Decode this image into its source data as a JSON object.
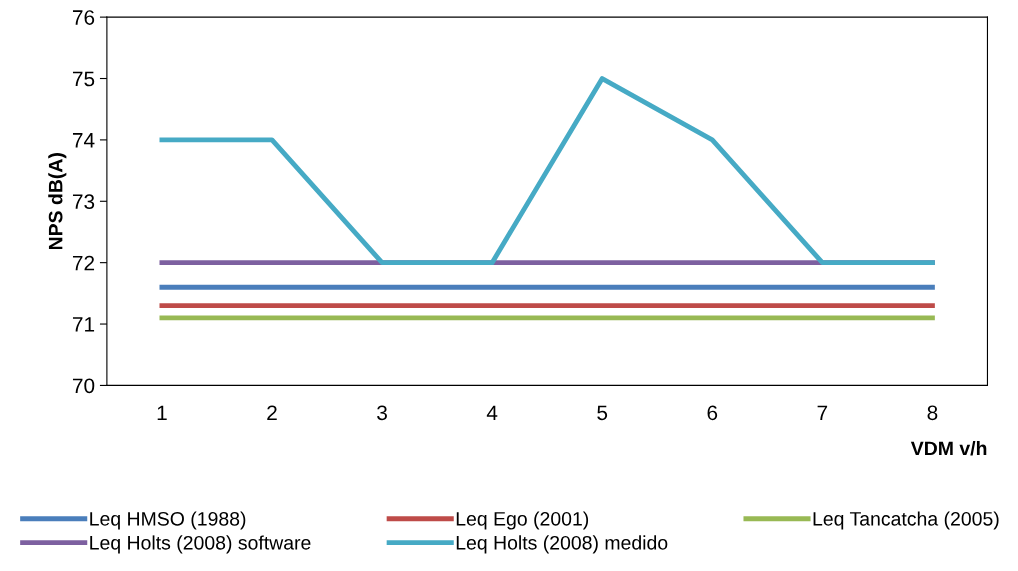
{
  "chart_data": {
    "type": "line",
    "xlabel": "VDM v/h",
    "ylabel": "NPS dB(A)",
    "categories": [
      "1",
      "2",
      "3",
      "4",
      "5",
      "6",
      "7",
      "8"
    ],
    "series": [
      {
        "name": "Leq HMSO (1988)",
        "color": "#4a7ebb",
        "values": [
          71.6,
          71.6,
          71.6,
          71.6,
          71.6,
          71.6,
          71.6,
          71.6
        ]
      },
      {
        "name": "Leq Ego (2001)",
        "color": "#be4b48",
        "values": [
          71.3,
          71.3,
          71.3,
          71.3,
          71.3,
          71.3,
          71.3,
          71.3
        ]
      },
      {
        "name": "Leq Tancatcha (2005)",
        "color": "#98b954",
        "values": [
          71.1,
          71.1,
          71.1,
          71.1,
          71.1,
          71.1,
          71.1,
          71.1
        ]
      },
      {
        "name": "Leq Holts (2008) software",
        "color": "#7d60a0",
        "values": [
          72,
          72,
          72,
          72,
          72,
          72,
          72,
          72
        ]
      },
      {
        "name": "Leq Holts (2008) medido",
        "color": "#46aac5",
        "values": [
          74,
          74,
          72,
          72,
          75,
          74,
          72,
          72
        ]
      }
    ],
    "ylim": [
      70,
      76
    ],
    "yticks": [
      70,
      71,
      72,
      73,
      74,
      75,
      76
    ],
    "grid": false,
    "legend": "bottom",
    "marker": "none",
    "line_style": "solid"
  }
}
